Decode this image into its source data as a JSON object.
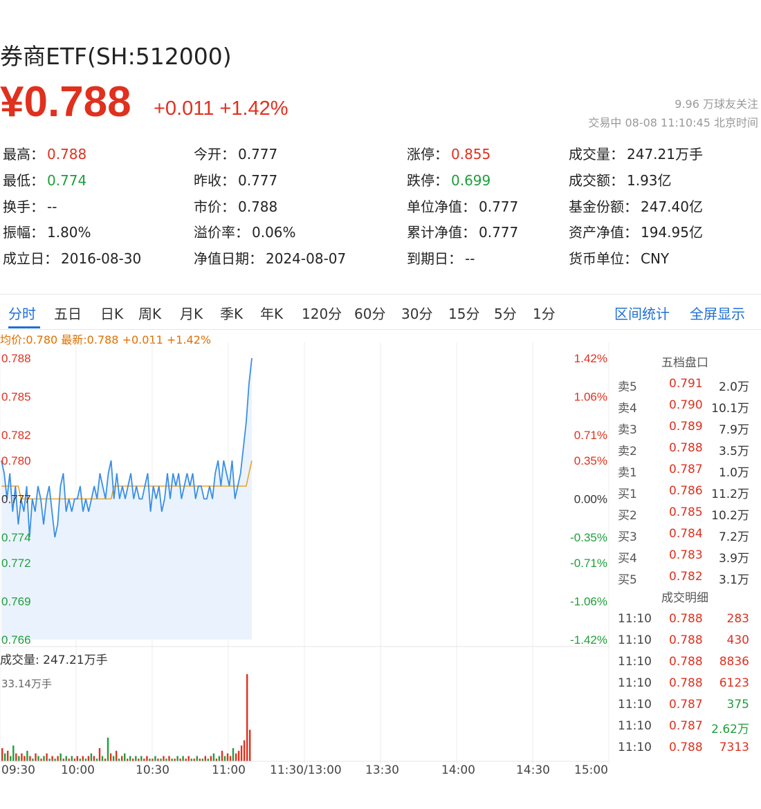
{
  "header": {
    "title": "券商ETF(SH:512000)",
    "price": "¥0.788",
    "change": "+0.011  +1.42%",
    "followers": "9.96 万球友关注",
    "status": "交易中 08-08 11:10:45 北京时间"
  },
  "stats": [
    {
      "label": "最高：",
      "value": "0.788",
      "tone": "red"
    },
    {
      "label": "今开：",
      "value": "0.777",
      "tone": ""
    },
    {
      "label": "涨停：",
      "value": "0.855",
      "tone": "red"
    },
    {
      "label": "成交量：",
      "value": "247.21万手",
      "tone": ""
    },
    {
      "label": "最低：",
      "value": "0.774",
      "tone": "green"
    },
    {
      "label": "昨收：",
      "value": "0.777",
      "tone": ""
    },
    {
      "label": "跌停：",
      "value": "0.699",
      "tone": "green"
    },
    {
      "label": "成交额：",
      "value": "1.93亿",
      "tone": ""
    },
    {
      "label": "换手：",
      "value": "--",
      "tone": ""
    },
    {
      "label": "市价：",
      "value": "0.788",
      "tone": ""
    },
    {
      "label": "单位净值：",
      "value": "0.777",
      "tone": ""
    },
    {
      "label": "基金份额：",
      "value": "247.40亿",
      "tone": ""
    },
    {
      "label": "振幅：",
      "value": "1.80%",
      "tone": ""
    },
    {
      "label": "溢价率：",
      "value": "0.06%",
      "tone": ""
    },
    {
      "label": "累计净值：",
      "value": "0.777",
      "tone": ""
    },
    {
      "label": "资产净值：",
      "value": "194.95亿",
      "tone": ""
    },
    {
      "label": "成立日：",
      "value": "2016-08-30",
      "tone": ""
    },
    {
      "label": "净值日期：",
      "value": "2024-08-07",
      "tone": ""
    },
    {
      "label": "到期日：",
      "value": "--",
      "tone": ""
    },
    {
      "label": "货币单位：",
      "value": "CNY",
      "tone": ""
    }
  ],
  "tabs": [
    "分时",
    "五日",
    "日K",
    "周K",
    "月K",
    "季K",
    "年K",
    "120分",
    "60分",
    "30分",
    "15分",
    "5分",
    "1分"
  ],
  "active_tab": "分时",
  "tab_links": [
    "区间统计",
    "全屏显示"
  ],
  "legend": "均价:0.780 最新:0.788 +0.011  +1.42%",
  "order_book": {
    "title": "五档盘口",
    "rows": [
      {
        "label": "卖5",
        "price": "0.791",
        "vol": "2.0万"
      },
      {
        "label": "卖4",
        "price": "0.790",
        "vol": "10.1万"
      },
      {
        "label": "卖3",
        "price": "0.789",
        "vol": "7.9万"
      },
      {
        "label": "卖2",
        "price": "0.788",
        "vol": "3.5万"
      },
      {
        "label": "卖1",
        "price": "0.787",
        "vol": "1.0万"
      },
      {
        "label": "买1",
        "price": "0.786",
        "vol": "11.2万"
      },
      {
        "label": "买2",
        "price": "0.785",
        "vol": "10.2万"
      },
      {
        "label": "买3",
        "price": "0.784",
        "vol": "7.2万"
      },
      {
        "label": "买4",
        "price": "0.783",
        "vol": "3.9万"
      },
      {
        "label": "买5",
        "price": "0.782",
        "vol": "3.1万"
      }
    ]
  },
  "trades": {
    "title": "成交明细",
    "rows": [
      {
        "time": "11:10",
        "price": "0.788",
        "vol": "283",
        "tone": "red"
      },
      {
        "time": "11:10",
        "price": "0.788",
        "vol": "430",
        "tone": "red"
      },
      {
        "time": "11:10",
        "price": "0.788",
        "vol": "8836",
        "tone": "red"
      },
      {
        "time": "11:10",
        "price": "0.788",
        "vol": "6123",
        "tone": "red"
      },
      {
        "time": "11:10",
        "price": "0.787",
        "vol": "375",
        "tone": "green"
      },
      {
        "time": "11:10",
        "price": "0.787",
        "vol": "2.62万",
        "tone": "green"
      },
      {
        "time": "11:10",
        "price": "0.788",
        "vol": "7313",
        "tone": "red"
      }
    ]
  },
  "volume_title": "成交量: 247.21万手",
  "volume_max_label": "33.14万手",
  "time_labels": [
    "09:30",
    "10:00",
    "10:30",
    "11:00",
    "11:30/13:00",
    "13:30",
    "14:00",
    "14:30",
    "15:00"
  ],
  "chart_data": {
    "type": "line",
    "y_price_ticks": [
      "0.788",
      "0.785",
      "0.782",
      "0.780",
      "0.777",
      "0.774",
      "0.772",
      "0.769",
      "0.766"
    ],
    "y_pct_ticks": [
      "1.42%",
      "1.06%",
      "0.71%",
      "0.35%",
      "0.00%",
      "-0.35%",
      "-0.71%",
      "-1.06%",
      "-1.42%"
    ],
    "ylim": [
      0.766,
      0.788
    ],
    "prev_close": 0.777,
    "series": [
      {
        "color": "#3a8ee6",
        "values": [
          0.78,
          0.779,
          0.777,
          0.779,
          0.776,
          0.778,
          0.775,
          0.777,
          0.776,
          0.778,
          0.774,
          0.777,
          0.776,
          0.778,
          0.777,
          0.775,
          0.777,
          0.778,
          0.776,
          0.774,
          0.775,
          0.778,
          0.779,
          0.776,
          0.777,
          0.776,
          0.777,
          0.777,
          0.778,
          0.776,
          0.777,
          0.776,
          0.777,
          0.778,
          0.777,
          0.779,
          0.778,
          0.777,
          0.779,
          0.78,
          0.777,
          0.779,
          0.777,
          0.778,
          0.777,
          0.778,
          0.779,
          0.777,
          0.778,
          0.777,
          0.777,
          0.778,
          0.779,
          0.776,
          0.778,
          0.777,
          0.778,
          0.776,
          0.777,
          0.779,
          0.777,
          0.779,
          0.778,
          0.779,
          0.777,
          0.778,
          0.779,
          0.778,
          0.779,
          0.777,
          0.778,
          0.778,
          0.777,
          0.777,
          0.778,
          0.777,
          0.779,
          0.78,
          0.778,
          0.78,
          0.779,
          0.778,
          0.78,
          0.777,
          0.778,
          0.779,
          0.781,
          0.783,
          0.786,
          0.788
        ]
      },
      {
        "color": "#f0a020",
        "values": [
          0.778,
          0.778,
          0.778,
          0.778,
          0.778,
          0.778,
          0.778,
          0.777,
          0.777,
          0.777,
          0.777,
          0.777,
          0.777,
          0.777,
          0.777,
          0.777,
          0.777,
          0.777,
          0.777,
          0.777,
          0.777,
          0.777,
          0.777,
          0.777,
          0.777,
          0.777,
          0.777,
          0.777,
          0.777,
          0.777,
          0.777,
          0.777,
          0.777,
          0.777,
          0.777,
          0.777,
          0.777,
          0.777,
          0.777,
          0.777,
          0.778,
          0.778,
          0.778,
          0.778,
          0.778,
          0.778,
          0.778,
          0.778,
          0.778,
          0.778,
          0.778,
          0.778,
          0.778,
          0.778,
          0.778,
          0.778,
          0.778,
          0.778,
          0.778,
          0.778,
          0.778,
          0.778,
          0.778,
          0.778,
          0.778,
          0.778,
          0.778,
          0.778,
          0.778,
          0.778,
          0.778,
          0.778,
          0.778,
          0.778,
          0.778,
          0.778,
          0.778,
          0.778,
          0.778,
          0.778,
          0.778,
          0.778,
          0.778,
          0.778,
          0.778,
          0.778,
          0.778,
          0.778,
          0.779,
          0.78
        ]
      }
    ],
    "volume_bars": [
      {
        "v": 5,
        "c": "r"
      },
      {
        "v": 3,
        "c": "g"
      },
      {
        "v": 4,
        "c": "r"
      },
      {
        "v": 2,
        "c": "g"
      },
      {
        "v": 6,
        "c": "g"
      },
      {
        "v": 3,
        "c": "r"
      },
      {
        "v": 2,
        "c": "g"
      },
      {
        "v": 3,
        "c": "r"
      },
      {
        "v": 2,
        "c": "r"
      },
      {
        "v": 4,
        "c": "g"
      },
      {
        "v": 2,
        "c": "r"
      },
      {
        "v": 1,
        "c": "g"
      },
      {
        "v": 3,
        "c": "r"
      },
      {
        "v": 2,
        "c": "g"
      },
      {
        "v": 1,
        "c": "r"
      },
      {
        "v": 2,
        "c": "g"
      },
      {
        "v": 3,
        "c": "r"
      },
      {
        "v": 1,
        "c": "g"
      },
      {
        "v": 2,
        "c": "r"
      },
      {
        "v": 1,
        "c": "g"
      },
      {
        "v": 2,
        "c": "r"
      },
      {
        "v": 3,
        "c": "g"
      },
      {
        "v": 1,
        "c": "r"
      },
      {
        "v": 2,
        "c": "g"
      },
      {
        "v": 1,
        "c": "r"
      },
      {
        "v": 2,
        "c": "g"
      },
      {
        "v": 1,
        "c": "r"
      },
      {
        "v": 2,
        "c": "r"
      },
      {
        "v": 1,
        "c": "g"
      },
      {
        "v": 2,
        "c": "r"
      },
      {
        "v": 1,
        "c": "g"
      },
      {
        "v": 2,
        "c": "r"
      },
      {
        "v": 3,
        "c": "g"
      },
      {
        "v": 2,
        "c": "r"
      },
      {
        "v": 1,
        "c": "g"
      },
      {
        "v": 5,
        "c": "r"
      },
      {
        "v": 2,
        "c": "g"
      },
      {
        "v": 1,
        "c": "r"
      },
      {
        "v": 9,
        "c": "g"
      },
      {
        "v": 3,
        "c": "r"
      },
      {
        "v": 2,
        "c": "g"
      },
      {
        "v": 4,
        "c": "r"
      },
      {
        "v": 1,
        "c": "g"
      },
      {
        "v": 2,
        "c": "r"
      },
      {
        "v": 3,
        "c": "g"
      },
      {
        "v": 1,
        "c": "r"
      },
      {
        "v": 2,
        "c": "g"
      },
      {
        "v": 1,
        "c": "r"
      },
      {
        "v": 2,
        "c": "g"
      },
      {
        "v": 1,
        "c": "r"
      },
      {
        "v": 2,
        "c": "g"
      },
      {
        "v": 1,
        "c": "r"
      },
      {
        "v": 2,
        "c": "r"
      },
      {
        "v": 1,
        "c": "g"
      },
      {
        "v": 1,
        "c": "r"
      },
      {
        "v": 2,
        "c": "g"
      },
      {
        "v": 1,
        "c": "r"
      },
      {
        "v": 1,
        "c": "g"
      },
      {
        "v": 2,
        "c": "r"
      },
      {
        "v": 1,
        "c": "g"
      },
      {
        "v": 2,
        "c": "r"
      },
      {
        "v": 1,
        "c": "g"
      },
      {
        "v": 1,
        "c": "r"
      },
      {
        "v": 2,
        "c": "g"
      },
      {
        "v": 1,
        "c": "r"
      },
      {
        "v": 2,
        "c": "g"
      },
      {
        "v": 1,
        "c": "r"
      },
      {
        "v": 2,
        "c": "r"
      },
      {
        "v": 1,
        "c": "g"
      },
      {
        "v": 1,
        "c": "r"
      },
      {
        "v": 2,
        "c": "g"
      },
      {
        "v": 1,
        "c": "r"
      },
      {
        "v": 1,
        "c": "g"
      },
      {
        "v": 2,
        "c": "r"
      },
      {
        "v": 1,
        "c": "g"
      },
      {
        "v": 2,
        "c": "r"
      },
      {
        "v": 3,
        "c": "g"
      },
      {
        "v": 1,
        "c": "r"
      },
      {
        "v": 2,
        "c": "g"
      },
      {
        "v": 4,
        "c": "r"
      },
      {
        "v": 2,
        "c": "g"
      },
      {
        "v": 3,
        "c": "r"
      },
      {
        "v": 2,
        "c": "r"
      },
      {
        "v": 5,
        "c": "g"
      },
      {
        "v": 3,
        "c": "r"
      },
      {
        "v": 4,
        "c": "r"
      },
      {
        "v": 6,
        "c": "r"
      },
      {
        "v": 8,
        "c": "r"
      },
      {
        "v": 33.14,
        "c": "r"
      },
      {
        "v": 12,
        "c": "r"
      }
    ]
  }
}
